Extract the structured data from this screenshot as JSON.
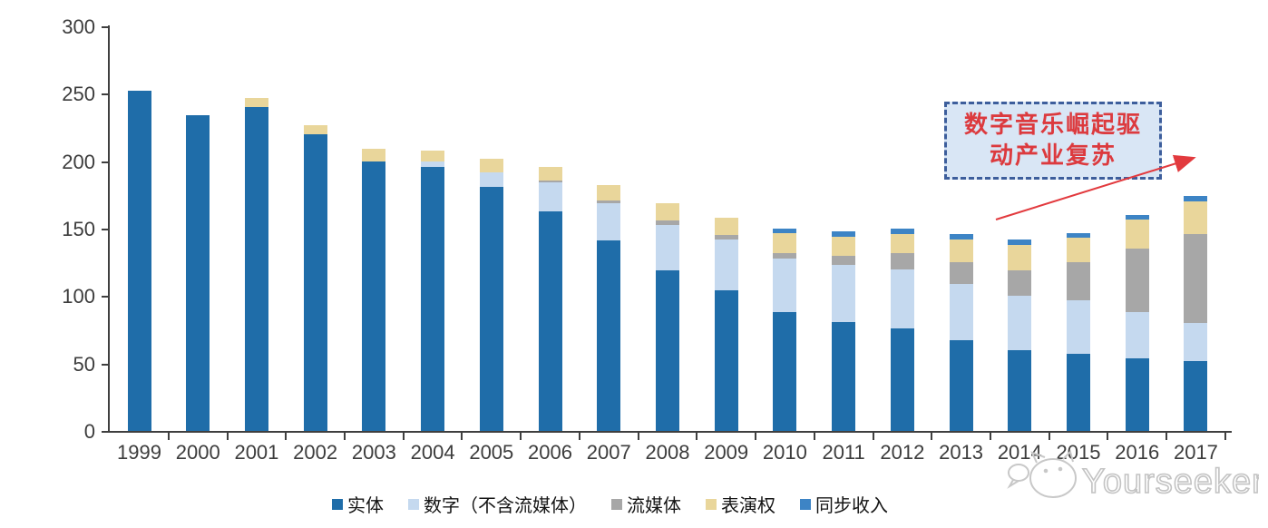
{
  "chart_data": {
    "type": "bar",
    "stacked": true,
    "title": "",
    "categories": [
      "1999",
      "2000",
      "2001",
      "2002",
      "2003",
      "2004",
      "2005",
      "2006",
      "2007",
      "2008",
      "2009",
      "2010",
      "2011",
      "2012",
      "2013",
      "2014",
      "2015",
      "2016",
      "2017"
    ],
    "series": [
      {
        "name": "实体",
        "color": "#1f6da9",
        "values": [
          252,
          234,
          240,
          220,
          200,
          196,
          181,
          163,
          141,
          119,
          104,
          88,
          81,
          76,
          67,
          60,
          57,
          54,
          52
        ]
      },
      {
        "name": "数字（不含流媒体）",
        "color": "#c5d9ef",
        "values": [
          0,
          0,
          0,
          0,
          0,
          4,
          11,
          21,
          28,
          34,
          38,
          40,
          42,
          44,
          42,
          40,
          40,
          34,
          28
        ]
      },
      {
        "name": "流媒体",
        "color": "#a7a7a7",
        "values": [
          0,
          0,
          0,
          0,
          0,
          0,
          0,
          2,
          2,
          3,
          3,
          4,
          7,
          12,
          16,
          19,
          28,
          47,
          66
        ]
      },
      {
        "name": "表演权",
        "color": "#e9d69b",
        "values": [
          0,
          0,
          7,
          7,
          9,
          8,
          10,
          10,
          11,
          13,
          13,
          15,
          14,
          14,
          17,
          19,
          18,
          22,
          24
        ]
      },
      {
        "name": "同步收入",
        "color": "#3d84c5",
        "values": [
          0,
          0,
          0,
          0,
          0,
          0,
          0,
          0,
          0,
          0,
          0,
          3,
          4,
          4,
          4,
          4,
          4,
          3,
          4
        ]
      }
    ],
    "ylim": [
      0,
      300
    ],
    "y_ticks": [
      0,
      50,
      100,
      150,
      200,
      250,
      300
    ],
    "grid": false,
    "legend_position": "bottom"
  },
  "annotation": {
    "line1": "数字音乐崛起驱",
    "line2": "动产业复苏",
    "text_color": "#dc3a3e",
    "box_fill": "#d9e6f5",
    "box_border": "#3d5e9c",
    "arrow_color": "#e23a3e"
  },
  "watermark": {
    "text": "Yourseeker"
  }
}
